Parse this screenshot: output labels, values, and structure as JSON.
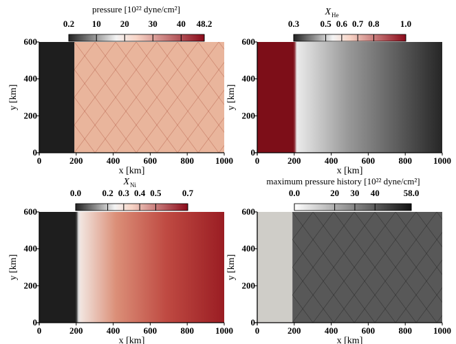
{
  "chart_data": [
    {
      "type": "heatmap",
      "id": "pressure",
      "colorbar": {
        "title": "pressure [10²² dyne/cm²]",
        "ticks": [
          "0.2",
          "10",
          "20",
          "30",
          "40",
          "48.2"
        ],
        "tick_values": [
          0.2,
          10,
          20,
          30,
          40,
          48.2
        ],
        "range": [
          0.2,
          48.2
        ],
        "colors": [
          "#333333",
          "#ffffff",
          "#8b0a1a"
        ]
      },
      "xlabel": "x [km]",
      "ylabel": "y [km]",
      "xticks": [
        "0",
        "200",
        "400",
        "600",
        "800",
        "1000"
      ],
      "yticks": [
        "0",
        "200",
        "400",
        "600"
      ],
      "xlim": [
        0,
        1000
      ],
      "ylim": [
        0,
        600
      ],
      "regions": [
        {
          "x_from": 0,
          "x_to": 190,
          "color": "#1e1e1e"
        },
        {
          "x_from": 190,
          "x_to": 1000,
          "color": "#e9b59c"
        }
      ]
    },
    {
      "type": "heatmap",
      "id": "xhe",
      "colorbar": {
        "title": "X_He",
        "ticks": [
          "0.3",
          "0.5",
          "0.6",
          "0.7",
          "0.8",
          "1.0"
        ],
        "tick_values": [
          0.3,
          0.5,
          0.6,
          0.7,
          0.8,
          1.0
        ],
        "range": [
          0.3,
          1.0
        ],
        "colors": [
          "#333333",
          "#ffffff",
          "#8b0a1a"
        ]
      },
      "xlabel": "x [km]",
      "ylabel": "y [km]",
      "xticks": [
        "0",
        "200",
        "400",
        "600",
        "800",
        "1000"
      ],
      "yticks": [
        "0",
        "200",
        "400",
        "600"
      ],
      "xlim": [
        0,
        1000
      ],
      "ylim": [
        0,
        600
      ],
      "regions": [
        {
          "x_from": 0,
          "x_to": 200,
          "color": "#7d0e18"
        },
        {
          "x_from": 210,
          "x_to": 1000,
          "color_start": "#f2f2f2",
          "color_end": "#262626"
        }
      ]
    },
    {
      "type": "heatmap",
      "id": "xni",
      "colorbar": {
        "title": "X_Ni",
        "ticks": [
          "0.0",
          "0.2",
          "0.3",
          "0.4",
          "0.5",
          "0.7"
        ],
        "tick_values": [
          0.0,
          0.2,
          0.3,
          0.4,
          0.5,
          0.7
        ],
        "range": [
          0.0,
          0.7
        ],
        "colors": [
          "#333333",
          "#ffffff",
          "#8b0a1a"
        ]
      },
      "xlabel": "x [km]",
      "ylabel": "y [km]",
      "xticks": [
        "0",
        "200",
        "400",
        "600",
        "800",
        "1000"
      ],
      "yticks": [
        "0",
        "200",
        "400",
        "600"
      ],
      "xlim": [
        0,
        1000
      ],
      "ylim": [
        0,
        600
      ],
      "regions": [
        {
          "x_from": 0,
          "x_to": 200,
          "color": "#1e1e1e"
        },
        {
          "x_from": 220,
          "x_to": 1000,
          "color_start": "#f1e5e0",
          "color_end": "#9a1d23"
        }
      ]
    },
    {
      "type": "heatmap",
      "id": "maxp",
      "colorbar": {
        "title": "maximum pressure history [10²² dyne/cm²]",
        "ticks": [
          "0.0",
          "20",
          "30",
          "40",
          "58.0"
        ],
        "tick_values": [
          0.0,
          20,
          30,
          40,
          58.0
        ],
        "range": [
          0.0,
          58.0
        ],
        "colors": [
          "#ffffff",
          "#111111"
        ]
      },
      "xlabel": "x [km]",
      "ylabel": "y [km]",
      "xticks": [
        "0",
        "200",
        "400",
        "600",
        "800",
        "1000"
      ],
      "yticks": [
        "0",
        "200",
        "400",
        "600"
      ],
      "xlim": [
        0,
        1000
      ],
      "ylim": [
        0,
        600
      ],
      "regions": [
        {
          "x_from": 0,
          "x_to": 190,
          "color": "#cfcdc8"
        },
        {
          "x_from": 190,
          "x_to": 1000,
          "color": "#565656"
        }
      ]
    }
  ]
}
